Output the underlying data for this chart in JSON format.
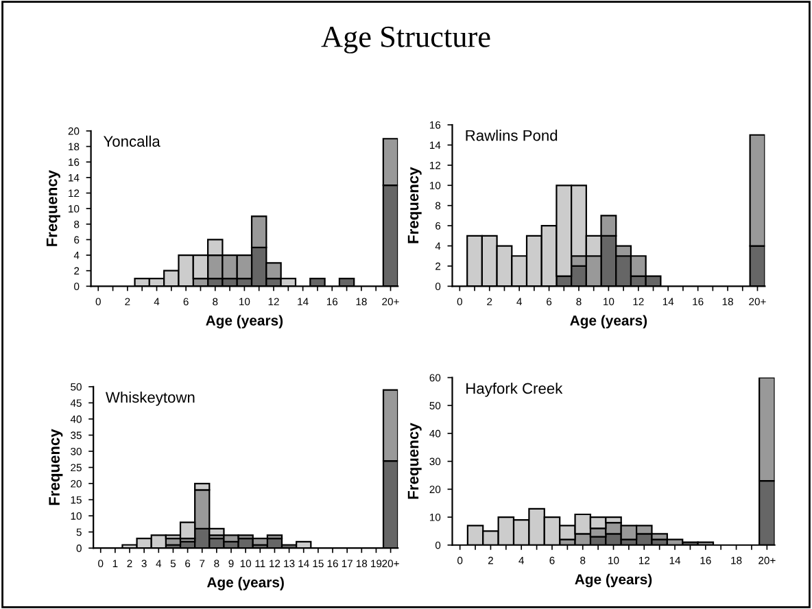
{
  "chart_data": [
    {
      "type": "bar",
      "stacked": true,
      "title": "Yoncalla",
      "xlabel": "Age (years)",
      "ylabel": "Frequency",
      "annotations": [
        "Age Structure"
      ],
      "categories": [
        "0",
        null,
        "2",
        null,
        "4",
        null,
        "6",
        null,
        "8",
        null,
        "10",
        null,
        "12",
        null,
        "14",
        null,
        "16",
        null,
        "18",
        null,
        "20+"
      ],
      "ylim": [
        0,
        20
      ],
      "yticks": [
        0,
        2,
        4,
        6,
        8,
        10,
        12,
        14,
        16,
        18,
        20
      ],
      "series": [
        {
          "color": "#666666",
          "values": [
            0,
            0,
            0,
            0,
            0,
            0,
            0,
            0,
            1,
            1,
            1,
            5,
            1,
            0,
            0,
            1,
            0,
            1,
            0,
            0,
            13
          ]
        },
        {
          "color": "#999999",
          "values": [
            0,
            0,
            0,
            0,
            0,
            0,
            0,
            1,
            3,
            3,
            3,
            4,
            2,
            0,
            0,
            0,
            0,
            0,
            0,
            0,
            6
          ]
        },
        {
          "color": "#cccccc",
          "values": [
            0,
            0,
            0,
            1,
            1,
            2,
            4,
            3,
            2,
            0,
            0,
            0,
            0,
            1,
            0,
            0,
            0,
            0,
            0,
            0,
            0
          ]
        }
      ]
    },
    {
      "type": "bar",
      "stacked": true,
      "title": "Rawlins Pond",
      "xlabel": "Age (years)",
      "ylabel": "Frequency",
      "categories": [
        "0",
        null,
        "2",
        null,
        "4",
        null,
        "6",
        null,
        "8",
        null,
        "10",
        null,
        "12",
        null,
        "14",
        null,
        "16",
        null,
        "18",
        null,
        "20+"
      ],
      "ylim": [
        0,
        16
      ],
      "yticks": [
        0,
        2,
        4,
        6,
        8,
        10,
        12,
        14,
        16
      ],
      "series": [
        {
          "color": "#666666",
          "values": [
            0,
            0,
            0,
            0,
            0,
            0,
            0,
            1,
            2,
            0,
            5,
            3,
            1,
            1,
            0,
            0,
            0,
            0,
            0,
            0,
            4
          ]
        },
        {
          "color": "#999999",
          "values": [
            0,
            0,
            0,
            0,
            0,
            0,
            0,
            0,
            1,
            3,
            2,
            1,
            2,
            0,
            0,
            0,
            0,
            0,
            0,
            0,
            11
          ]
        },
        {
          "color": "#cccccc",
          "values": [
            0,
            5,
            5,
            4,
            3,
            5,
            6,
            9,
            7,
            2,
            0,
            0,
            0,
            0,
            0,
            0,
            0,
            0,
            0,
            0,
            0
          ]
        }
      ]
    },
    {
      "type": "bar",
      "stacked": true,
      "title": "Whiskeytown",
      "xlabel": "Age (years)",
      "ylabel": "Frequency",
      "categories": [
        "0",
        "1",
        "2",
        "3",
        "4",
        "5",
        "6",
        "7",
        "8",
        "9",
        "10",
        "11",
        "12",
        "13",
        "14",
        "15",
        "16",
        "17",
        "18",
        "19",
        "20+"
      ],
      "ylim": [
        0,
        50
      ],
      "yticks": [
        0,
        5,
        10,
        15,
        20,
        25,
        30,
        35,
        40,
        45,
        50
      ],
      "series": [
        {
          "color": "#666666",
          "values": [
            0,
            0,
            0,
            0,
            0,
            1,
            2,
            6,
            3,
            2,
            3,
            1,
            3,
            1,
            0,
            0,
            0,
            0,
            0,
            0,
            27
          ]
        },
        {
          "color": "#999999",
          "values": [
            0,
            0,
            0,
            0,
            0,
            2,
            1,
            12,
            1,
            2,
            1,
            2,
            1,
            0,
            0,
            0,
            0,
            0,
            0,
            0,
            22
          ]
        },
        {
          "color": "#cccccc",
          "values": [
            0,
            0,
            1,
            3,
            4,
            1,
            5,
            2,
            2,
            0,
            0,
            0,
            0,
            0,
            2,
            0,
            0,
            0,
            0,
            0,
            0
          ]
        }
      ]
    },
    {
      "type": "bar",
      "stacked": true,
      "title": "Hayfork Creek",
      "xlabel": "Age (years)",
      "ylabel": "Frequency",
      "categories": [
        "0",
        null,
        "2",
        null,
        "4",
        null,
        "6",
        null,
        "8",
        null,
        "10",
        null,
        "12",
        null,
        "14",
        null,
        "16",
        null,
        "18",
        null,
        "20+"
      ],
      "ylim": [
        0,
        60
      ],
      "yticks": [
        0,
        10,
        20,
        30,
        40,
        50,
        60
      ],
      "series": [
        {
          "color": "#666666",
          "values": [
            0,
            0,
            0,
            0,
            0,
            0,
            0,
            0,
            0,
            3,
            4,
            2,
            4,
            2,
            0,
            1,
            0,
            0,
            0,
            0,
            23
          ]
        },
        {
          "color": "#999999",
          "values": [
            0,
            0,
            0,
            0,
            0,
            0,
            0,
            2,
            4,
            3,
            4,
            5,
            3,
            2,
            2,
            0,
            1,
            0,
            0,
            0,
            37
          ]
        },
        {
          "color": "#cccccc",
          "values": [
            0,
            7,
            5,
            10,
            9,
            13,
            10,
            5,
            7,
            4,
            2,
            0,
            0,
            0,
            0,
            0,
            0,
            0,
            0,
            0,
            0
          ]
        }
      ]
    }
  ]
}
